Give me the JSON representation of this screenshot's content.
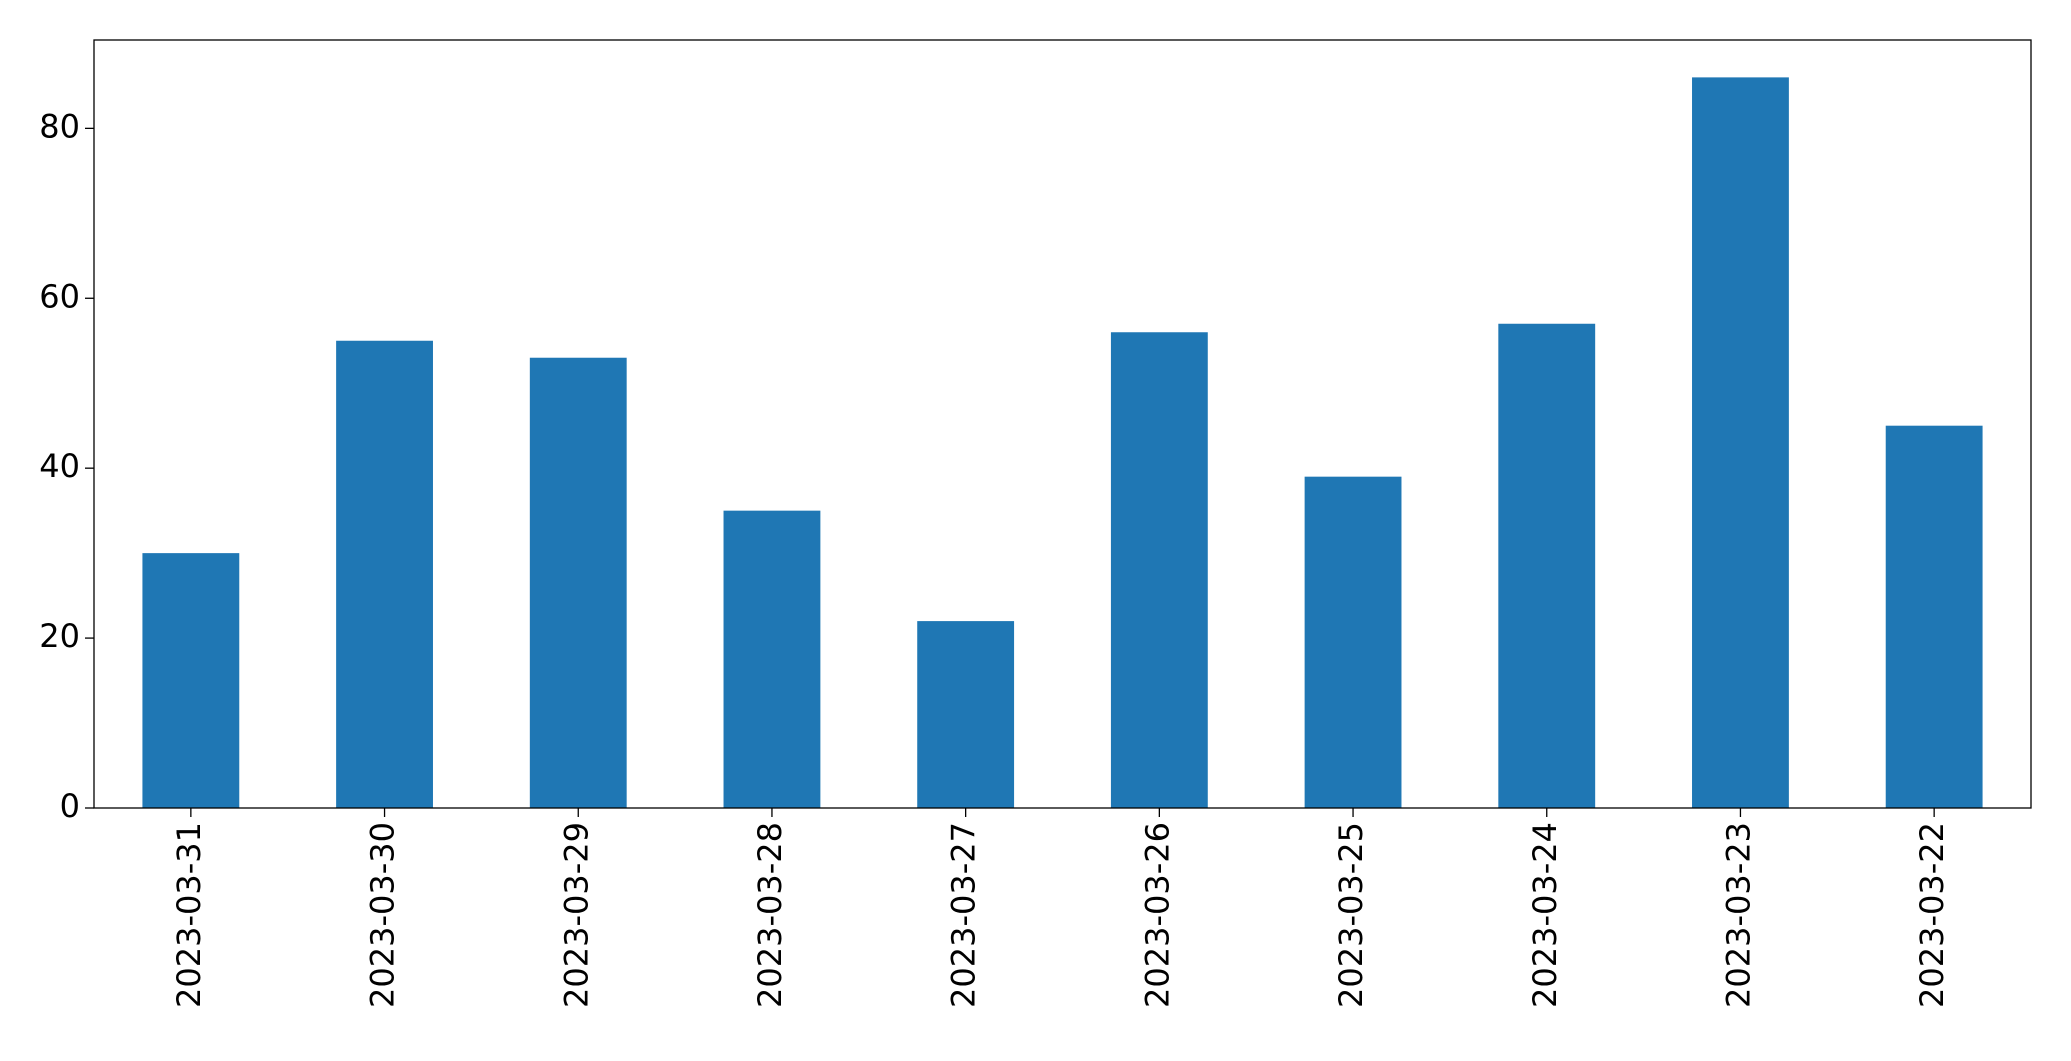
{
  "chart_data": {
    "type": "bar",
    "categories": [
      "2023-03-31",
      "2023-03-30",
      "2023-03-29",
      "2023-03-28",
      "2023-03-27",
      "2023-03-26",
      "2023-03-25",
      "2023-03-24",
      "2023-03-23",
      "2023-03-22"
    ],
    "values": [
      30,
      55,
      53,
      35,
      22,
      56,
      39,
      57,
      86,
      45
    ],
    "color": "#1f77b4",
    "ylim": [
      0,
      90.4
    ],
    "yticks": [
      0,
      20,
      40,
      60,
      80
    ],
    "grid": false
  }
}
